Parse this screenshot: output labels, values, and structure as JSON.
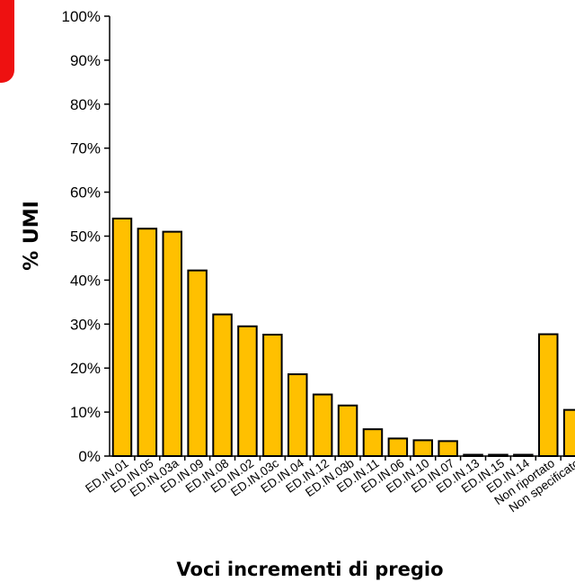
{
  "chart_data": {
    "type": "bar",
    "title": "",
    "xlabel": "Voci incrementi di pregio",
    "ylabel": "% UMI",
    "ylim": [
      0,
      100
    ],
    "yticks": [
      "0%",
      "10%",
      "20%",
      "30%",
      "40%",
      "50%",
      "60%",
      "70%",
      "80%",
      "90%",
      "100%"
    ],
    "grid": false,
    "categories": [
      "ED.IN.01",
      "ED.IN.05",
      "ED.IN.03a",
      "ED.IN.09",
      "ED.IN.08",
      "ED.IN.02",
      "ED.IN.03c",
      "ED.IN.04",
      "ED.IN.12",
      "ED.IN.03b",
      "ED.IN.11",
      "ED.IN.06",
      "ED.IN.10",
      "ED.IN.07",
      "ED.IN.13",
      "ED.IN.15",
      "ED.IN.14",
      "Non riportato",
      "Non specificato"
    ],
    "values": [
      54.0,
      51.7,
      51.0,
      42.2,
      32.2,
      29.5,
      27.6,
      18.6,
      14.0,
      11.5,
      6.1,
      4.0,
      3.6,
      3.4,
      0.3,
      0.3,
      0.3,
      27.7,
      10.5
    ],
    "bar_color": "#ffc000",
    "bar_edge_color": "#000000"
  }
}
